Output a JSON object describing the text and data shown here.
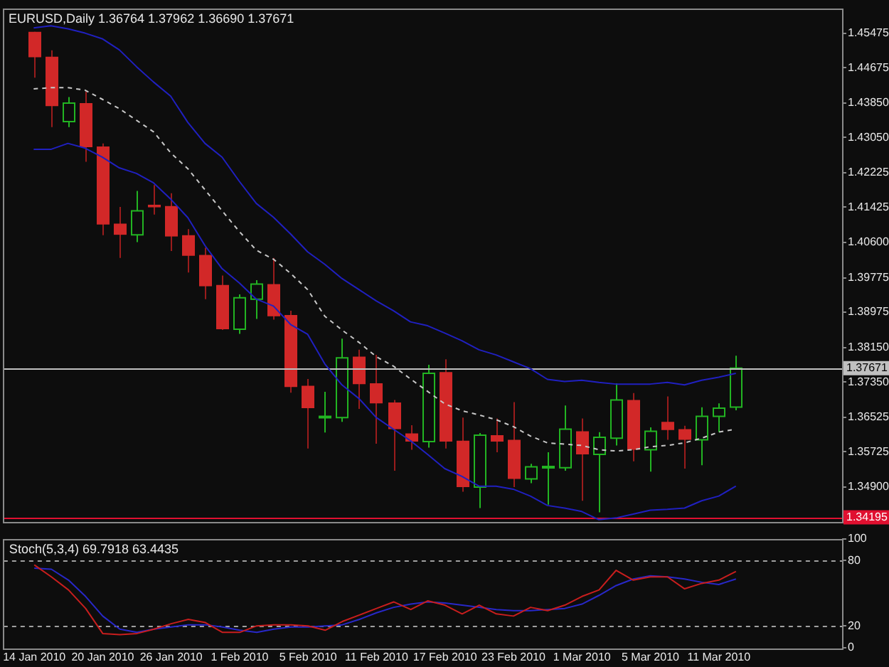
{
  "chart_data": [
    {
      "type": "candlestick",
      "title": "EURUSD,Daily 1.36764 1.37962 1.36690 1.37671",
      "categories": [
        null,
        null,
        null,
        null,
        null,
        null,
        null,
        null,
        null,
        null,
        null,
        null,
        null,
        null,
        null,
        null,
        null,
        null,
        null,
        null,
        null,
        null,
        null,
        null,
        null,
        null,
        null,
        null,
        null,
        null,
        null,
        null,
        null,
        null,
        null,
        null,
        null,
        null,
        null,
        null,
        null,
        null
      ],
      "ohlc": [
        [
          1.4551,
          1.4551,
          1.4444,
          1.4492
        ],
        [
          1.4493,
          1.4508,
          1.4329,
          1.4378
        ],
        [
          1.4342,
          1.4399,
          1.4329,
          1.4385
        ],
        [
          1.4385,
          1.4412,
          1.4248,
          1.4282
        ],
        [
          1.4284,
          1.4291,
          1.4077,
          1.4102
        ],
        [
          1.4104,
          1.4143,
          1.4024,
          1.4078
        ],
        [
          1.4078,
          1.418,
          1.4061,
          1.4134
        ],
        [
          1.4148,
          1.4194,
          1.4125,
          1.4142
        ],
        [
          1.4145,
          1.4175,
          1.404,
          1.4074
        ],
        [
          1.4077,
          1.4091,
          1.399,
          1.4029
        ],
        [
          1.4031,
          1.4048,
          1.3928,
          1.3958
        ],
        [
          1.3961,
          1.3983,
          1.3856,
          1.3858
        ],
        [
          1.3858,
          1.3939,
          1.3847,
          1.3931
        ],
        [
          1.3928,
          1.3972,
          1.3882,
          1.3963
        ],
        [
          1.3963,
          1.4024,
          1.388,
          1.3888
        ],
        [
          1.3891,
          1.3901,
          1.371,
          1.3723
        ],
        [
          1.3726,
          1.3742,
          1.358,
          1.3674
        ],
        [
          1.3653,
          1.3712,
          1.3617,
          1.3655
        ],
        [
          1.3652,
          1.3836,
          1.3642,
          1.3791
        ],
        [
          1.3794,
          1.381,
          1.3672,
          1.373
        ],
        [
          1.3732,
          1.3798,
          1.3591,
          1.3685
        ],
        [
          1.3687,
          1.3693,
          1.3528,
          1.3625
        ],
        [
          1.3615,
          1.3634,
          1.3577,
          1.3596
        ],
        [
          1.3596,
          1.3775,
          1.3582,
          1.3755
        ],
        [
          1.3758,
          1.3788,
          1.358,
          1.3596
        ],
        [
          1.3598,
          1.3652,
          1.3479,
          1.349
        ],
        [
          1.349,
          1.3616,
          1.3441,
          1.3611
        ],
        [
          1.3611,
          1.365,
          1.3571,
          1.3596
        ],
        [
          1.36,
          1.3688,
          1.349,
          1.3509
        ],
        [
          1.3509,
          1.3544,
          1.3499,
          1.3537
        ],
        [
          1.3536,
          1.3571,
          1.3449,
          1.3538
        ],
        [
          1.3535,
          1.368,
          1.3528,
          1.3625
        ],
        [
          1.362,
          1.365,
          1.3458,
          1.3566
        ],
        [
          1.3566,
          1.3618,
          1.3431,
          1.3606
        ],
        [
          1.3604,
          1.3732,
          1.3587,
          1.3693
        ],
        [
          1.3693,
          1.3709,
          1.355,
          1.3577
        ],
        [
          1.3577,
          1.3629,
          1.3526,
          1.362
        ],
        [
          1.3642,
          1.3701,
          1.36,
          1.3623
        ],
        [
          1.3625,
          1.3633,
          1.3533,
          1.36
        ],
        [
          1.36,
          1.3676,
          1.3541,
          1.3655
        ],
        [
          1.3655,
          1.3685,
          1.3618,
          1.3674
        ],
        [
          1.36764,
          1.37962,
          1.3669,
          1.37671
        ]
      ],
      "series": [
        {
          "type": "line",
          "color": "#2020c0",
          "values": [
            1.456,
            1.4565,
            1.4558,
            1.4548,
            1.4535,
            1.4509,
            1.447,
            1.4434,
            1.4401,
            1.434,
            1.4291,
            1.4259,
            1.4203,
            1.4151,
            1.4119,
            1.408,
            1.4038,
            1.4009,
            1.3976,
            1.395,
            1.3924,
            1.3901,
            1.3875,
            1.3866,
            1.3849,
            1.3831,
            1.381,
            1.3798,
            1.3782,
            1.3766,
            1.3741,
            1.3736,
            1.3739,
            1.3734,
            1.373,
            1.373,
            1.373,
            1.3734,
            1.3728,
            1.3739,
            1.3746,
            1.3755
          ]
        },
        {
          "type": "line",
          "color": "#c8c8c8",
          "line_style": "dashed",
          "values": [
            1.4418,
            1.4421,
            1.4421,
            1.4415,
            1.4394,
            1.4372,
            1.4345,
            1.4318,
            1.4269,
            1.4232,
            1.4183,
            1.4134,
            1.4086,
            1.4042,
            1.4021,
            1.3988,
            1.395,
            1.3888,
            1.3856,
            1.3827,
            1.3794,
            1.3772,
            1.3742,
            1.3713,
            1.3684,
            1.3668,
            1.3658,
            1.3647,
            1.3631,
            1.3609,
            1.3593,
            1.359,
            1.3587,
            1.3577,
            1.3574,
            1.3577,
            1.3584,
            1.3587,
            1.3593,
            1.3604,
            1.3618,
            1.3625
          ]
        },
        {
          "type": "line",
          "color": "#2020c0",
          "values": [
            1.4277,
            1.4277,
            1.4291,
            1.428,
            1.4259,
            1.4234,
            1.4221,
            1.4199,
            1.4161,
            1.4118,
            1.4053,
            1.3999,
            1.3966,
            1.3928,
            1.3912,
            1.3869,
            1.3846,
            1.3777,
            1.3728,
            1.3696,
            1.3652,
            1.3625,
            1.3598,
            1.3566,
            1.3533,
            1.3515,
            1.3492,
            1.3492,
            1.3485,
            1.3469,
            1.3447,
            1.3441,
            1.3433,
            1.3414,
            1.3418,
            1.3427,
            1.3436,
            1.3438,
            1.3441,
            1.3458,
            1.3469,
            1.3492
          ]
        }
      ],
      "ylim": [
        1.3408,
        1.4606
      ],
      "yticks": [
        1.45475,
        1.44675,
        {
          "value": 1.4385,
          "label": "1.43850"
        },
        {
          "value": 1.4305,
          "label": "1.43050"
        },
        1.42225,
        1.41425,
        {
          "value": 1.406,
          "label": "1.40600"
        },
        1.39775,
        1.38975,
        {
          "value": 1.3815,
          "label": "1.38150"
        },
        {
          "value": 1.3735,
          "label": "1.37350"
        },
        1.36525,
        1.35725,
        {
          "value": 1.349,
          "label": "1.34900"
        }
      ],
      "ref_lines": [
        {
          "axis": "y",
          "value": 1.37671,
          "label": "1.37671",
          "color": "#c0c0c0"
        },
        {
          "axis": "y",
          "value": 1.34195,
          "label": "1.34195",
          "color": "#e01030"
        }
      ],
      "grid": false,
      "legend": false,
      "marker": "none",
      "tick_labels": "y"
    },
    {
      "type": "line",
      "title": "Stoch(5,3,4) 69.7918 63.4435",
      "categories": [
        "14 Jan 2010",
        null,
        null,
        null,
        "20 Jan 2010",
        null,
        null,
        null,
        "26 Jan 2010",
        null,
        null,
        null,
        "1 Feb 2010",
        null,
        null,
        null,
        "5 Feb 2010",
        null,
        null,
        null,
        "11 Feb 2010",
        null,
        null,
        null,
        "17 Feb 2010",
        null,
        null,
        null,
        "23 Feb 2010",
        null,
        null,
        null,
        "1 Mar 2010",
        null,
        null,
        null,
        "5 Mar 2010",
        null,
        null,
        null,
        "11 Mar 2010",
        null
      ],
      "series": [
        {
          "color": "#c81e1e",
          "values": [
            76,
            65,
            53,
            36,
            13,
            12,
            13,
            17,
            22,
            26,
            23,
            14,
            14,
            20,
            21,
            21,
            20,
            16,
            24,
            30,
            36,
            42,
            35,
            43,
            39,
            31,
            39,
            31,
            29,
            37,
            34,
            39,
            47,
            53,
            71,
            62,
            65,
            65,
            54,
            59,
            62,
            70
          ]
        },
        {
          "color": "#2828c8",
          "values": [
            73,
            72,
            62,
            47,
            29,
            17,
            14,
            17,
            19,
            21,
            21,
            19,
            16,
            14,
            17,
            19,
            19,
            20,
            21,
            26,
            32,
            37,
            40,
            42,
            41,
            39,
            37,
            35,
            34,
            34,
            35,
            36,
            40,
            48,
            57,
            63,
            66,
            65,
            63,
            60,
            58,
            63
          ]
        }
      ],
      "ylim": [
        0,
        100
      ],
      "yticks": [
        0,
        20,
        80,
        100
      ],
      "ref_lines": [
        {
          "axis": "y",
          "value": 20,
          "color": "#a0a0a0",
          "line_style": "dashed"
        },
        {
          "axis": "y",
          "value": 80,
          "color": "#a0a0a0",
          "line_style": "dashed"
        }
      ],
      "grid": false,
      "legend": false,
      "marker": "none"
    }
  ]
}
